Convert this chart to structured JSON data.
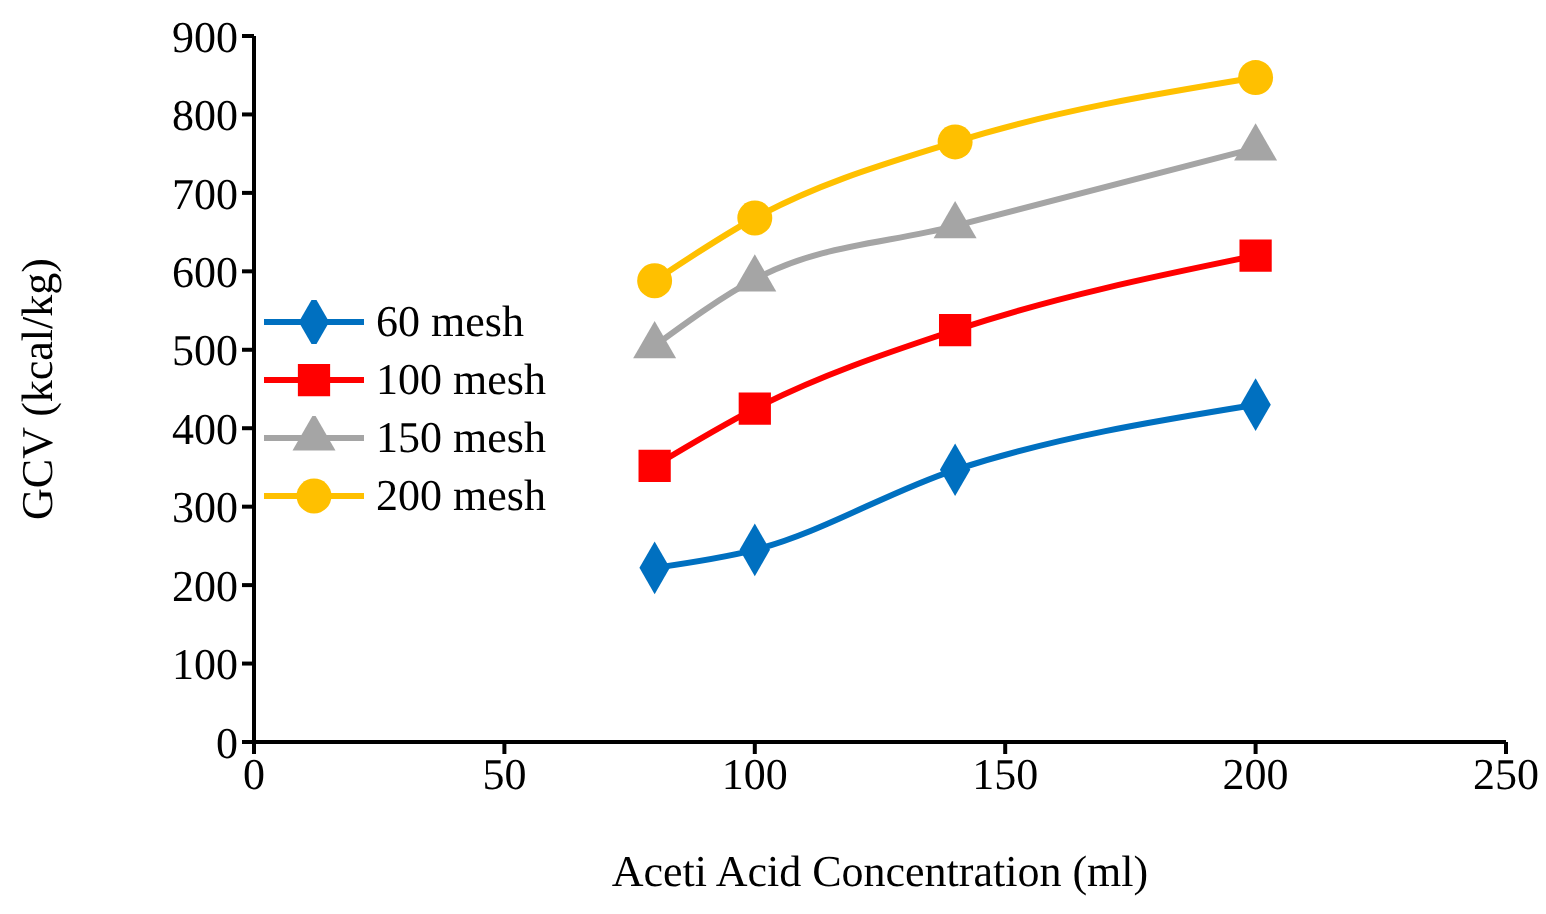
{
  "chart_data": {
    "type": "line",
    "xlabel": "Aceti Acid Concentration (ml)",
    "ylabel": "GCV (kcal/kg)",
    "x": [
      80,
      100,
      140,
      200
    ],
    "series": [
      {
        "name": "60 mesh",
        "color": "#0070c0",
        "marker": "diamond",
        "values": [
          222,
          245,
          347,
          430
        ]
      },
      {
        "name": "100 mesh",
        "color": "#ff0000",
        "marker": "square",
        "values": [
          352,
          425,
          525,
          620
        ]
      },
      {
        "name": "150 mesh",
        "color": "#a5a5a5",
        "marker": "triangle",
        "values": [
          505,
          590,
          658,
          757
        ]
      },
      {
        "name": "200 mesh",
        "color": "#ffc000",
        "marker": "circle",
        "values": [
          588,
          668,
          765,
          847
        ]
      }
    ],
    "xlim": [
      0,
      250
    ],
    "xticks": [
      0,
      50,
      100,
      150,
      200,
      250
    ],
    "ylim": [
      0,
      900
    ],
    "yticks": [
      0,
      100,
      200,
      300,
      400,
      500,
      600,
      700,
      800,
      900
    ],
    "legend": "left"
  }
}
